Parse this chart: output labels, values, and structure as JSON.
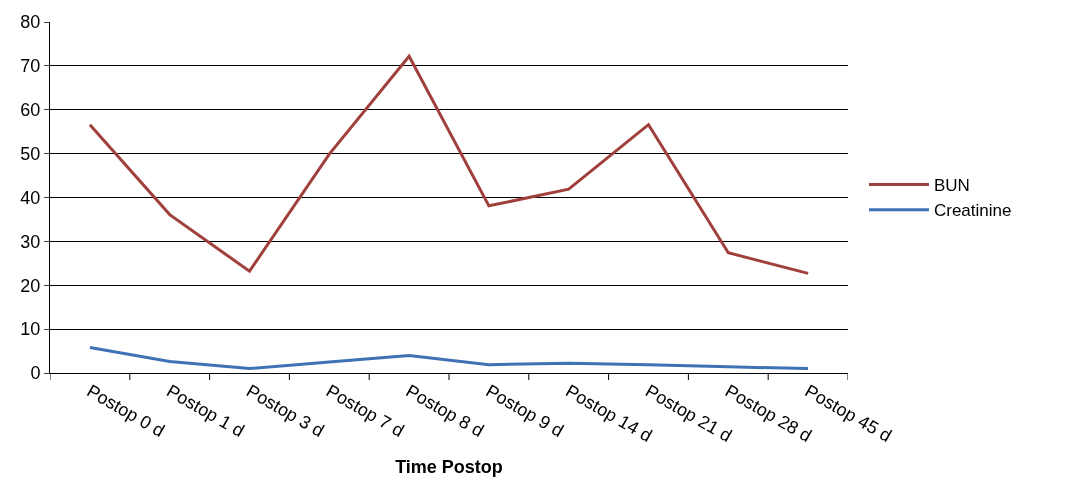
{
  "chart_data": {
    "type": "line",
    "xlabel": "Time Postop",
    "categories": [
      "Postop 0 d",
      "Postop 1 d",
      "Postop 3 d",
      "Postop 7 d",
      "Postop 8 d",
      "Postop 9 d",
      "Postop 14 d",
      "Postop 21 d",
      "Postop 28 d",
      "Postop 45 d"
    ],
    "series": [
      {
        "name": "BUN",
        "color": "#a0403c",
        "values": [
          56.6,
          36.1,
          23.2,
          49.9,
          72.2,
          38.1,
          41.9,
          56.6,
          27.4,
          22.7
        ]
      },
      {
        "name": "Creatinine",
        "color": "#3f72b5",
        "values": [
          5.8,
          2.6,
          1.0,
          2.5,
          4.0,
          1.9,
          2.2,
          1.9,
          1.4,
          1.0
        ]
      }
    ],
    "ylim": [
      0,
      80
    ],
    "yticks": [
      0,
      10,
      20,
      30,
      40,
      50,
      60,
      70,
      80
    ],
    "grid": "y",
    "legend": "right",
    "marker": "none",
    "line_style": "solid"
  }
}
